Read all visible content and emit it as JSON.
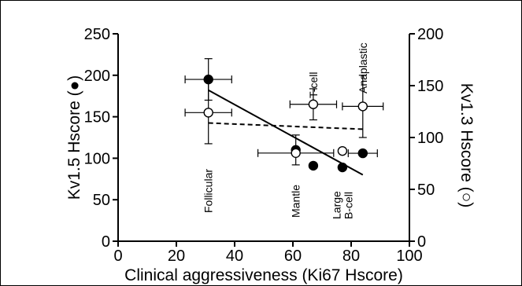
{
  "chart_data": {
    "type": "scatter",
    "xlabel": "Clinical aggressiveness (Ki67 Hscore)",
    "ylabel_left": "Kv1.5 Hscore (●)",
    "ylabel_right": "Kv1.3 Hscore (○)",
    "xlim": [
      0,
      100
    ],
    "ylim_left": [
      0,
      250
    ],
    "ylim_right": [
      0,
      200
    ],
    "x_ticks": [
      0,
      20,
      40,
      60,
      80,
      100
    ],
    "y_ticks_left": [
      0,
      50,
      100,
      150,
      200,
      250
    ],
    "y_ticks_right": [
      0,
      50,
      100,
      150,
      200
    ],
    "grid": false,
    "categories": [
      {
        "label": "Follicular",
        "x": 31
      },
      {
        "label": "Mantle",
        "x": 61
      },
      {
        "label": "T-cell",
        "x": 67
      },
      {
        "label": "Large B-cell",
        "x": 77
      },
      {
        "label": "Anaplastic",
        "x": 84
      }
    ],
    "series": [
      {
        "name": "Kv1.5",
        "axis": "left",
        "marker": "filled-circle",
        "color": "#000000",
        "points": [
          {
            "category": "Follicular",
            "x": 31,
            "y": 195,
            "xerr": 8,
            "yerr": 25
          },
          {
            "category": "Mantle",
            "x": 61,
            "y": 110,
            "xerr": 0,
            "yerr": 18
          },
          {
            "category": "T-cell",
            "x": 67,
            "y": 91,
            "xerr": 0,
            "yerr": 0
          },
          {
            "category": "Large B-cell",
            "x": 77,
            "y": 89,
            "xerr": 0,
            "yerr": 0
          },
          {
            "category": "Anaplastic",
            "x": 84,
            "y": 106,
            "xerr": 5,
            "yerr": 0
          }
        ],
        "trendline": {
          "style": "solid",
          "x": [
            31,
            84
          ],
          "y": [
            182,
            80
          ]
        }
      },
      {
        "name": "Kv1.3",
        "axis": "right",
        "marker": "open-circle",
        "color": "#000000",
        "points": [
          {
            "category": "Follicular",
            "x": 31,
            "y": 124,
            "xerr": 8,
            "yerr": 30
          },
          {
            "category": "Mantle",
            "x": 61,
            "y": 85,
            "xerr": 13,
            "yerr": 0
          },
          {
            "category": "T-cell",
            "x": 67,
            "y": 132,
            "xerr": 8,
            "yerr": 15
          },
          {
            "category": "Large B-cell",
            "x": 77,
            "y": 87,
            "xerr": 0,
            "yerr": 0
          },
          {
            "category": "Anaplastic",
            "x": 84,
            "y": 130,
            "xerr": 7,
            "yerr": 30
          }
        ],
        "trendline": {
          "style": "dashed",
          "x": [
            31,
            84
          ],
          "y": [
            114,
            108
          ]
        }
      }
    ]
  }
}
